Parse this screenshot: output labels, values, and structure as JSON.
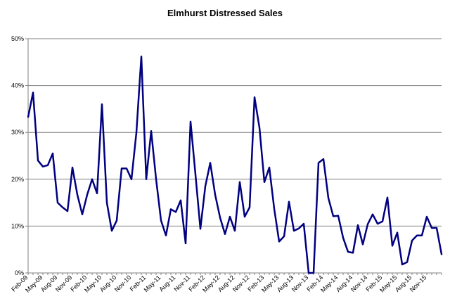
{
  "chart_data": {
    "type": "line",
    "title": "Elmhurst Distressed Sales",
    "xlabel": "",
    "ylabel": "",
    "ylim": [
      0,
      50
    ],
    "yticks": [
      "0%",
      "10%",
      "20%",
      "30%",
      "40%",
      "50%"
    ],
    "grid": true,
    "legend": "none",
    "x_tick_labels": [
      "Feb-09",
      "May-09",
      "Aug-09",
      "Nov-09",
      "Feb-10",
      "May-10",
      "Aug-10",
      "Nov-10",
      "Feb-11",
      "May-11",
      "Aug-11",
      "Nov-11",
      "Feb-12",
      "May-12",
      "Aug-12",
      "Nov-12",
      "Feb-13",
      "May-13",
      "Aug-13",
      "Nov-13",
      "Feb-14",
      "May-14",
      "Aug-14",
      "Nov-14",
      "Feb-15",
      "May-15",
      "Aug-15",
      "Nov-15"
    ],
    "series": [
      {
        "color": "#000080",
        "values": [
          33.3,
          38.5,
          24,
          22.7,
          23,
          25.5,
          15,
          14,
          13.2,
          22.5,
          16.7,
          12.5,
          16.7,
          20,
          17,
          36,
          15,
          9,
          11.2,
          22.3,
          22.3,
          20,
          30,
          46.2,
          20,
          30.3,
          20,
          11.2,
          8,
          13.6,
          13,
          15.5,
          6.3,
          32.3,
          21,
          9.4,
          18.5,
          23.5,
          16.7,
          11.8,
          8.3,
          12,
          9,
          19.4,
          12,
          14,
          37.5,
          31,
          19.4,
          22.5,
          13.7,
          6.7,
          7.8,
          15.2,
          9,
          9.5,
          10.5,
          0,
          0,
          23.5,
          24.3,
          16,
          12.1,
          12.2,
          7.5,
          4.5,
          4.3,
          10.2,
          6.1,
          10.4,
          12.5,
          10.5,
          11,
          16.1,
          5.8,
          8.6,
          1.8,
          2.3,
          6.9,
          8,
          8,
          12,
          9.6,
          9.6,
          4
        ]
      }
    ]
  }
}
